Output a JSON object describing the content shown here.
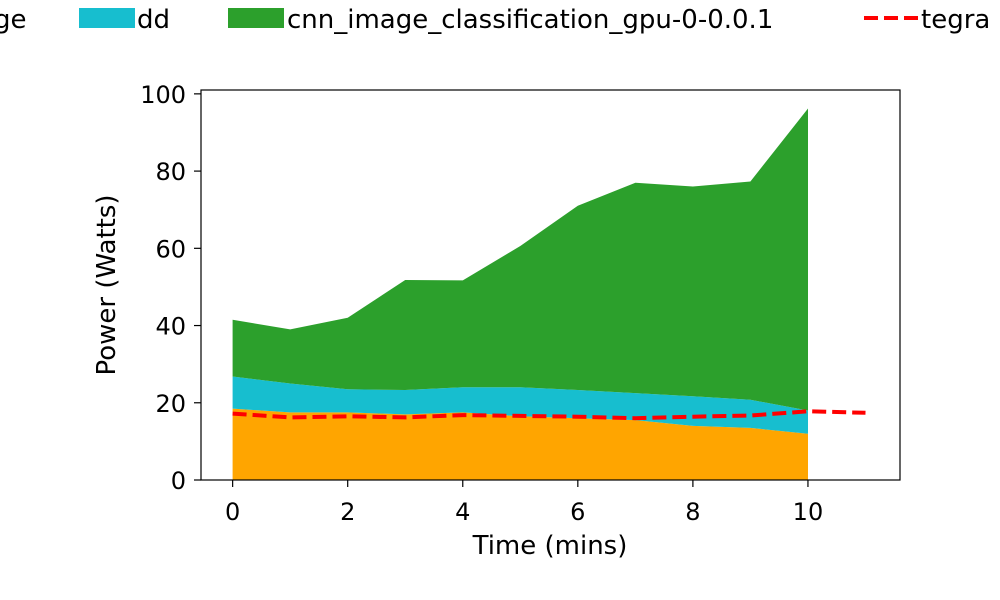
{
  "chart_data": {
    "type": "area",
    "title": "",
    "xlabel": "Time (mins)",
    "ylabel": "Power (Watts)",
    "xlim": [
      -0.55,
      11.6
    ],
    "ylim": [
      0,
      101
    ],
    "xticks": [
      0,
      2,
      4,
      6,
      8,
      10
    ],
    "yticks": [
      0,
      20,
      40,
      60,
      80,
      100
    ],
    "grid": false,
    "legend_position": "top",
    "stacked_areas": [
      {
        "name": "ge",
        "color": "#ffa500",
        "x": [
          0,
          1,
          2,
          3,
          4,
          5,
          6,
          7,
          8,
          9,
          10
        ],
        "values": [
          18.5,
          17.5,
          17.5,
          17.0,
          17.5,
          16.5,
          16.0,
          15.5,
          14.0,
          13.5,
          12.0
        ]
      },
      {
        "name": "dd",
        "color": "#17becf",
        "x": [
          0,
          1,
          2,
          3,
          4,
          5,
          6,
          7,
          8,
          9,
          10
        ],
        "values": [
          8.3,
          7.5,
          6.0,
          6.3,
          6.5,
          7.5,
          7.3,
          7.0,
          7.7,
          7.3,
          6.0
        ]
      },
      {
        "name": "cnn_image_classification_gpu-0-0.0.1",
        "color": "#2ca02c",
        "x": [
          0,
          1,
          2,
          3,
          4,
          5,
          6,
          7,
          8,
          9,
          10
        ],
        "values": [
          14.7,
          14.0,
          18.5,
          28.5,
          27.7,
          36.6,
          47.7,
          54.5,
          54.3,
          56.5,
          78.2
        ]
      }
    ],
    "lines": [
      {
        "name": "tegra",
        "color": "#ff0000",
        "style": "dashed",
        "x": [
          0,
          1,
          2,
          3,
          4,
          5,
          6,
          7,
          8,
          9,
          10,
          11
        ],
        "values": [
          17.2,
          16.2,
          16.5,
          16.2,
          16.8,
          16.6,
          16.4,
          16.0,
          16.4,
          16.7,
          17.8,
          17.4
        ]
      }
    ]
  }
}
